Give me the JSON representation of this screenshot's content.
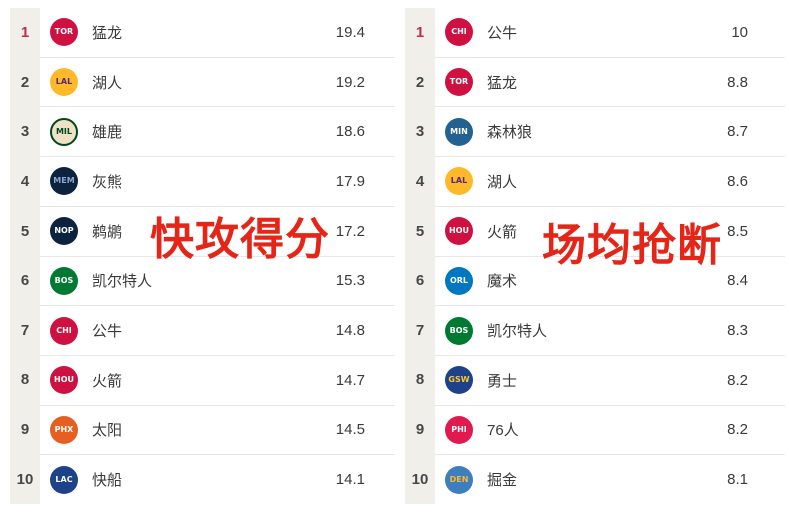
{
  "colors": {
    "page_bg": "#ffffff",
    "strip_bg": "#f1efea",
    "separator": "#e9e8e6",
    "rank_text": "#474747",
    "rank_top_highlight": "#c22f40",
    "name_text": "#3a3a3a",
    "value_text": "#3a3a3a",
    "watermark": "#e42517"
  },
  "boards": [
    {
      "id": "fast-break-points",
      "watermark": "快攻得分",
      "rows": [
        {
          "rank": "1",
          "top": true,
          "abbr": "TOR",
          "team": "猛龙",
          "value": "19.4",
          "logo_bg": "#CE1141",
          "logo_fg": "#FFFFFF"
        },
        {
          "rank": "2",
          "abbr": "LAL",
          "team": "湖人",
          "value": "19.2",
          "logo_bg": "#FDB927",
          "logo_fg": "#552583"
        },
        {
          "rank": "3",
          "abbr": "MIL",
          "team": "雄鹿",
          "value": "18.6",
          "logo_bg": "#EEE1C6",
          "logo_fg": "#00471B",
          "logo_border": "#00471B"
        },
        {
          "rank": "4",
          "abbr": "MEM",
          "team": "灰熊",
          "value": "17.9",
          "logo_bg": "#0C2340",
          "logo_fg": "#8EA8CE"
        },
        {
          "rank": "5",
          "abbr": "NOP",
          "team": "鹈鹕",
          "value": "17.2",
          "logo_bg": "#0C2340",
          "logo_fg": "#FFFFFF"
        },
        {
          "rank": "6",
          "abbr": "BOS",
          "team": "凯尔特人",
          "value": "15.3",
          "logo_bg": "#007A33",
          "logo_fg": "#FFFFFF"
        },
        {
          "rank": "7",
          "abbr": "CHI",
          "team": "公牛",
          "value": "14.8",
          "logo_bg": "#CE1141",
          "logo_fg": "#FFFFFF"
        },
        {
          "rank": "8",
          "abbr": "HOU",
          "team": "火箭",
          "value": "14.7",
          "logo_bg": "#CE1141",
          "logo_fg": "#FFFFFF"
        },
        {
          "rank": "9",
          "abbr": "PHX",
          "team": "太阳",
          "value": "14.5",
          "logo_bg": "#E56020",
          "logo_fg": "#FFFFFF"
        },
        {
          "rank": "10",
          "abbr": "LAC",
          "team": "快船",
          "value": "14.1",
          "logo_bg": "#1D428A",
          "logo_fg": "#FFFFFF"
        }
      ]
    },
    {
      "id": "steals-per-game",
      "watermark": "场均抢断",
      "rows": [
        {
          "rank": "1",
          "top": true,
          "abbr": "CHI",
          "team": "公牛",
          "value": "10",
          "logo_bg": "#CE1141",
          "logo_fg": "#FFFFFF"
        },
        {
          "rank": "2",
          "abbr": "TOR",
          "team": "猛龙",
          "value": "8.8",
          "logo_bg": "#CE1141",
          "logo_fg": "#FFFFFF"
        },
        {
          "rank": "3",
          "abbr": "MIN",
          "team": "森林狼",
          "value": "8.7",
          "logo_bg": "#236192",
          "logo_fg": "#FFFFFF"
        },
        {
          "rank": "4",
          "abbr": "LAL",
          "team": "湖人",
          "value": "8.6",
          "logo_bg": "#FDB927",
          "logo_fg": "#552583"
        },
        {
          "rank": "5",
          "abbr": "HOU",
          "team": "火箭",
          "value": "8.5",
          "logo_bg": "#CE1141",
          "logo_fg": "#FFFFFF"
        },
        {
          "rank": "6",
          "abbr": "ORL",
          "team": "魔术",
          "value": "8.4",
          "logo_bg": "#0077C0",
          "logo_fg": "#FFFFFF"
        },
        {
          "rank": "7",
          "abbr": "BOS",
          "team": "凯尔特人",
          "value": "8.3",
          "logo_bg": "#007A33",
          "logo_fg": "#FFFFFF"
        },
        {
          "rank": "8",
          "abbr": "GSW",
          "team": "勇士",
          "value": "8.2",
          "logo_bg": "#1D428A",
          "logo_fg": "#FFC72C"
        },
        {
          "rank": "9",
          "abbr": "PHI",
          "team": "76人",
          "value": "8.2",
          "logo_bg": "#E01A4F",
          "logo_fg": "#FFFFFF"
        },
        {
          "rank": "10",
          "abbr": "DEN",
          "team": "掘金",
          "value": "8.1",
          "logo_bg": "#3D7EBF",
          "logo_fg": "#FDB927"
        }
      ]
    }
  ]
}
